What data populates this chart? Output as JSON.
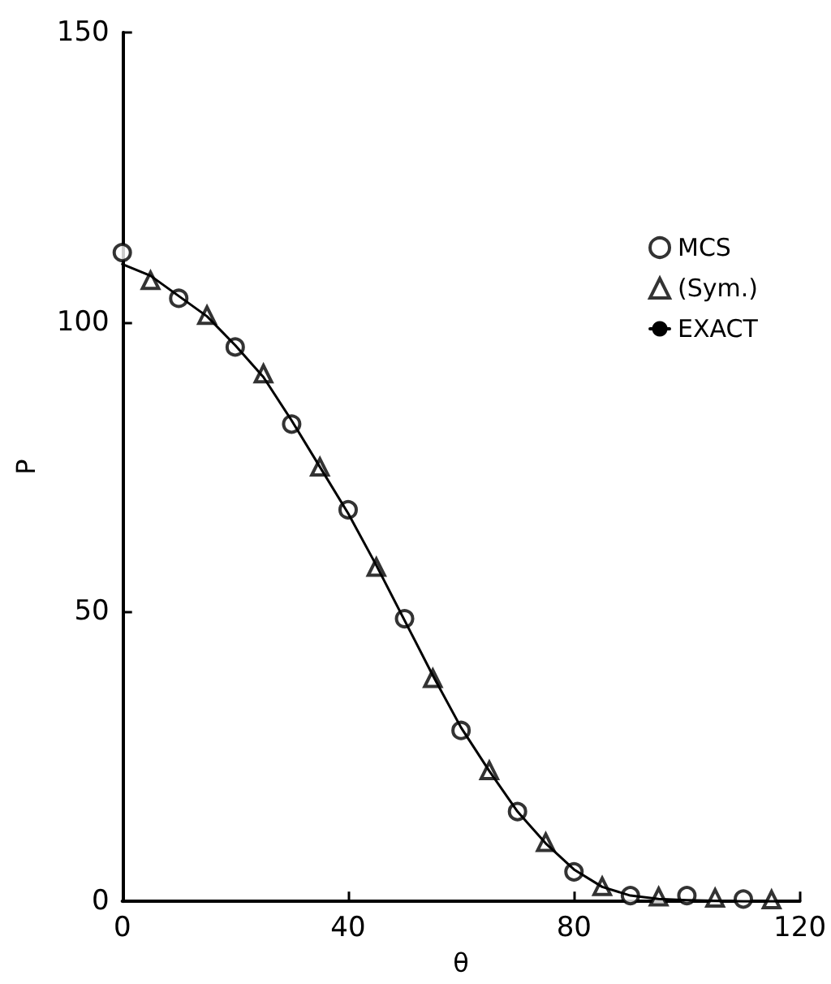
{
  "chart_data": {
    "type": "scatter",
    "xlabel": "θ",
    "ylabel": "P",
    "xlim": [
      0,
      120
    ],
    "ylim": [
      0,
      150
    ],
    "xticks": [
      0,
      40,
      80,
      120
    ],
    "yticks": [
      0,
      50,
      100,
      150
    ],
    "grid": false,
    "legend": "top right",
    "series": [
      {
        "name": "MCS",
        "color": "#000000",
        "marker": "circle",
        "x": [
          0,
          10,
          20,
          30,
          40,
          50,
          60,
          70,
          80,
          90,
          100,
          110
        ],
        "values": [
          112,
          104.1,
          95.7,
          82.4,
          67.6,
          48.8,
          29.5,
          15.5,
          5.1,
          1,
          1,
          0.4
        ]
      },
      {
        "name": "(Sym.)",
        "color": "#000000",
        "marker": "triangle",
        "x": [
          5,
          15,
          25,
          35,
          45,
          55,
          65,
          75,
          85,
          95,
          105,
          115
        ],
        "values": [
          107.2,
          101.2,
          91.1,
          75,
          57.7,
          38.5,
          22.6,
          10.2,
          2.6,
          0.8,
          0.6,
          0.3
        ]
      },
      {
        "name": "EXACT",
        "type": "line",
        "color": "#000000",
        "marker": "none",
        "line_style": "solid",
        "x": [
          0,
          5,
          10,
          15,
          20,
          25,
          30,
          35,
          40,
          45,
          50,
          55,
          60,
          65,
          70,
          75,
          80,
          85,
          90,
          95,
          100,
          105,
          110,
          115,
          120
        ],
        "values": [
          110,
          108,
          104.5,
          101,
          96,
          90.5,
          83,
          75,
          67,
          58,
          48.5,
          39,
          30,
          22.5,
          15.5,
          10,
          5.5,
          2.5,
          1,
          0.4,
          0.2,
          0.1,
          0,
          0,
          0
        ]
      }
    ]
  }
}
